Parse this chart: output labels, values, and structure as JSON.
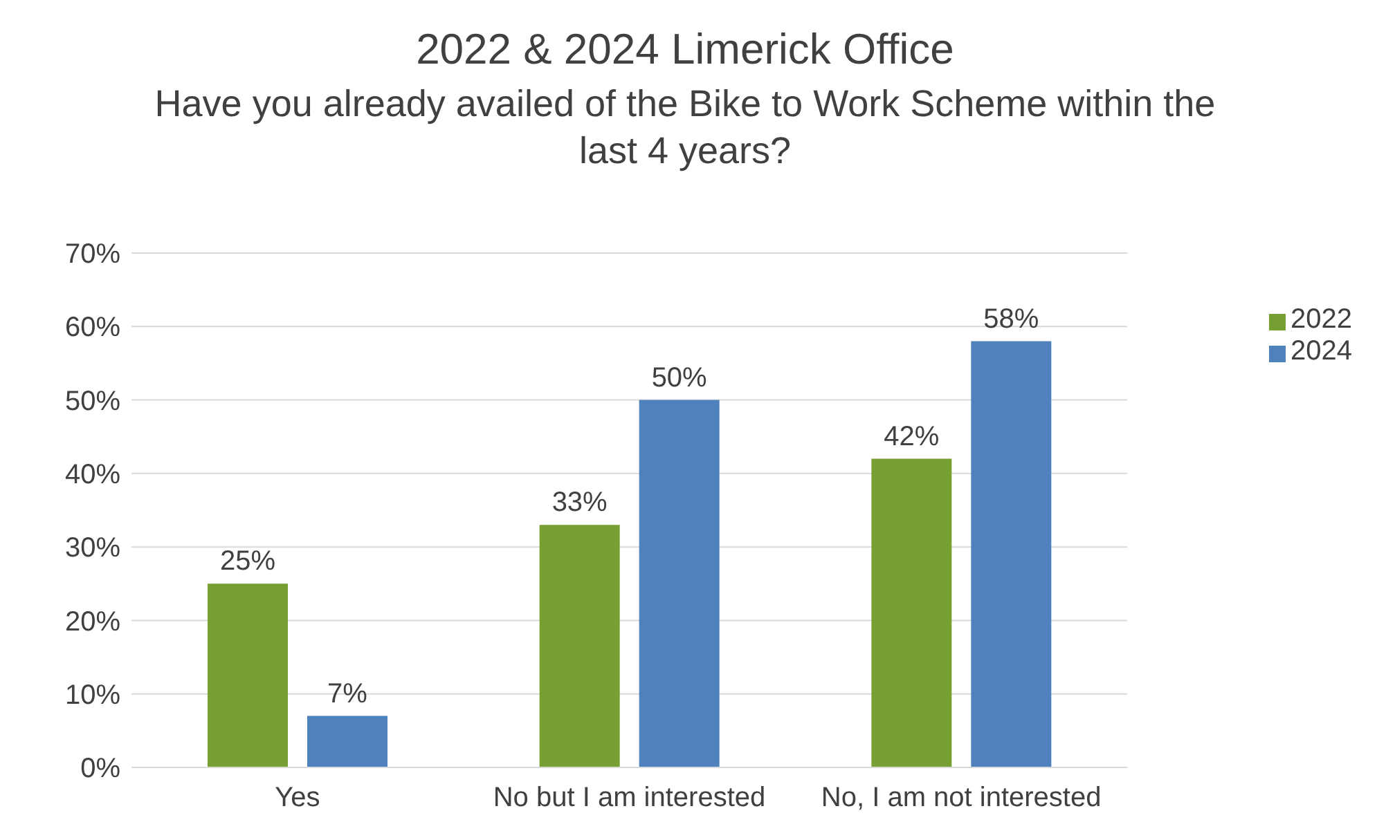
{
  "chart_data": {
    "type": "bar",
    "title": "2022 & 2024 Limerick Office",
    "subtitle": "Have you already availed of the Bike to Work Scheme within the last 4 years?",
    "categories": [
      "Yes",
      "No but I am interested",
      "No, I am not interested"
    ],
    "series": [
      {
        "name": "2022",
        "color": "#77a033",
        "values": [
          25,
          33,
          42
        ],
        "value_labels": [
          "25%",
          "33%",
          "42%"
        ]
      },
      {
        "name": "2024",
        "color": "#4f81bd",
        "values": [
          7,
          50,
          58
        ],
        "value_labels": [
          "7%",
          "50%",
          "58%"
        ]
      }
    ],
    "ylim": [
      0,
      70
    ],
    "yticks": [
      {
        "value": 0,
        "label": "0%"
      },
      {
        "value": 10,
        "label": "10%"
      },
      {
        "value": 20,
        "label": "20%"
      },
      {
        "value": 30,
        "label": "30%"
      },
      {
        "value": 40,
        "label": "40%"
      },
      {
        "value": 50,
        "label": "50%"
      },
      {
        "value": 60,
        "label": "60%"
      },
      {
        "value": 70,
        "label": "70%"
      }
    ],
    "grid": "y",
    "legend": "right"
  }
}
